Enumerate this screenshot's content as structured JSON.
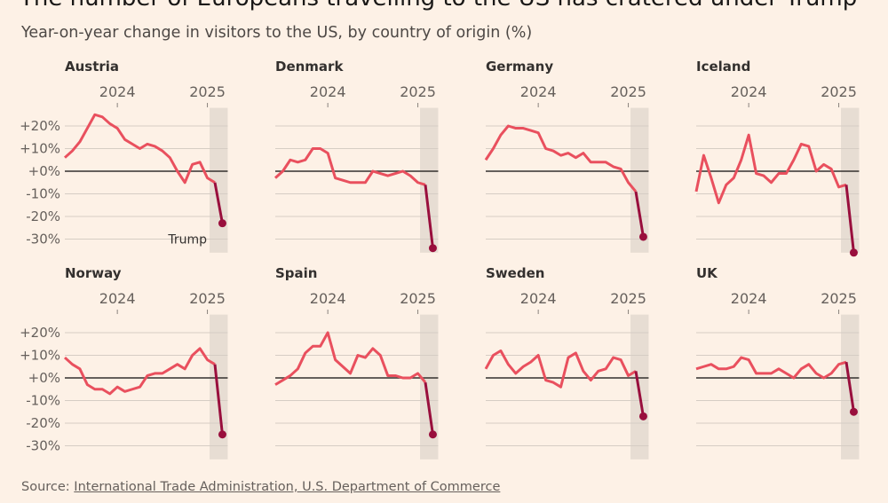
{
  "title": "The number of Europeans travelling to the US has cratered under Trump",
  "subtitle": "Year-on-year change in visitors to the US, by country of origin (%)",
  "source": {
    "label": "Source:",
    "link_text": "International Trade Administration, U.S. Department of Commerce"
  },
  "colors": {
    "background": "#fdf1e6",
    "line": "#e9505e",
    "highlight": "#990f3d",
    "shade": "#e7ddd3",
    "grid": "#d6cdc4",
    "zero": "#33302e"
  },
  "chart_data": {
    "type": "line",
    "layout": "small-multiples 4x2",
    "x": [
      "2023-06",
      "2023-07",
      "2023-08",
      "2023-09",
      "2023-10",
      "2023-11",
      "2023-12",
      "2024-01",
      "2024-02",
      "2024-03",
      "2024-04",
      "2024-05",
      "2024-06",
      "2024-07",
      "2024-08",
      "2024-09",
      "2024-10",
      "2024-11",
      "2024-12",
      "2025-01",
      "2025-02",
      "2025-03"
    ],
    "x_ticks": [
      "2024",
      "2025"
    ],
    "y_ticks": [
      "+20%",
      "+10%",
      "+0%",
      "-10%",
      "-20%",
      "-30%"
    ],
    "y_tick_values": [
      20,
      10,
      0,
      -10,
      -20,
      -30
    ],
    "ylim": [
      -36,
      28
    ],
    "grid": true,
    "shaded_period": [
      "2025-02",
      "2025-03"
    ],
    "annotation": {
      "panel": "Austria",
      "text": "Trump"
    },
    "panels": [
      {
        "name": "Austria",
        "values": [
          6,
          9,
          13,
          19,
          25,
          24,
          21,
          19,
          14,
          12,
          10,
          12,
          11,
          9,
          6,
          0,
          -5,
          3,
          4,
          -3,
          -5,
          -23
        ]
      },
      {
        "name": "Denmark",
        "values": [
          -3,
          0,
          5,
          4,
          5,
          10,
          10,
          8,
          -3,
          -4,
          -5,
          -5,
          -5,
          0,
          -1,
          -2,
          -1,
          0,
          -2,
          -5,
          -6,
          -34
        ]
      },
      {
        "name": "Germany",
        "values": [
          5,
          10,
          16,
          20,
          19,
          19,
          18,
          17,
          10,
          9,
          7,
          8,
          6,
          8,
          4,
          4,
          4,
          2,
          1,
          -5,
          -9,
          -29
        ]
      },
      {
        "name": "Iceland",
        "values": [
          -9,
          7,
          -3,
          -14,
          -6,
          -3,
          5,
          16,
          -1,
          -2,
          -5,
          -1,
          -1,
          5,
          12,
          11,
          0,
          3,
          1,
          -7,
          -6,
          -36
        ]
      },
      {
        "name": "Norway",
        "values": [
          9,
          6,
          4,
          -3,
          -5,
          -5,
          -7,
          -4,
          -6,
          -5,
          -4,
          1,
          2,
          2,
          4,
          6,
          4,
          10,
          13,
          8,
          6,
          -25
        ]
      },
      {
        "name": "Spain",
        "values": [
          -3,
          -1,
          1,
          4,
          11,
          14,
          14,
          20,
          8,
          5,
          2,
          10,
          9,
          13,
          10,
          1,
          1,
          0,
          0,
          2,
          -2,
          -25
        ]
      },
      {
        "name": "Sweden",
        "values": [
          4,
          10,
          12,
          6,
          2,
          5,
          7,
          10,
          -1,
          -2,
          -4,
          9,
          11,
          3,
          -1,
          3,
          4,
          9,
          8,
          1,
          3,
          -17
        ]
      },
      {
        "name": "UK",
        "values": [
          4,
          5,
          6,
          4,
          4,
          5,
          9,
          8,
          2,
          2,
          2,
          4,
          2,
          0,
          4,
          6,
          2,
          0,
          2,
          6,
          7,
          -15
        ]
      }
    ]
  }
}
